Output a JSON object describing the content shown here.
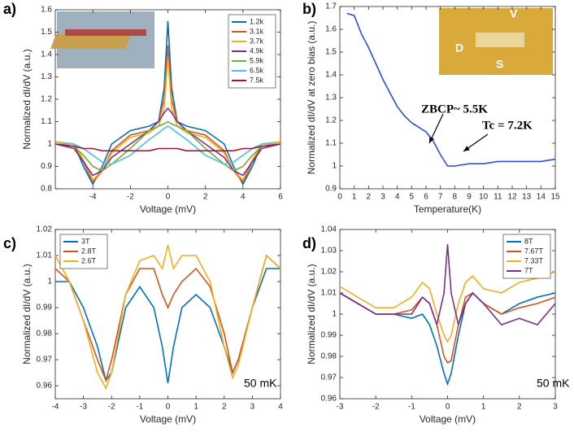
{
  "chart_data": [
    {
      "type": "line",
      "label": "a)",
      "x_label": "Voltage (mV)",
      "y_label": "Normalized dI/dV (a.u.)",
      "xlim": [
        -6,
        6
      ],
      "xticks": [
        -4,
        -2,
        0,
        2,
        4,
        6
      ],
      "ylim": [
        0.8,
        1.6
      ],
      "yticks": [
        0.8,
        0.9,
        1,
        1.1,
        1.2,
        1.3,
        1.4,
        1.5,
        1.6
      ],
      "legend": "upper right",
      "x": [
        -6,
        -5,
        -4.5,
        -4,
        -3.5,
        -3,
        -2,
        -1,
        -0.5,
        -0.2,
        0,
        0.2,
        0.5,
        1,
        2,
        3,
        3.5,
        4,
        4.5,
        5,
        6
      ],
      "series": [
        {
          "name": "1.2k",
          "color": "#0072bd",
          "values": [
            1.01,
            1.0,
            0.9,
            0.82,
            0.9,
            1.0,
            1.06,
            1.08,
            1.1,
            1.25,
            1.55,
            1.25,
            1.1,
            1.08,
            1.06,
            1.0,
            0.9,
            0.82,
            0.9,
            1.0,
            1.01
          ]
        },
        {
          "name": "3.1k",
          "color": "#d95319",
          "values": [
            1.01,
            1.0,
            0.92,
            0.83,
            0.88,
            0.97,
            1.04,
            1.06,
            1.1,
            1.2,
            1.44,
            1.2,
            1.1,
            1.06,
            1.04,
            0.97,
            0.88,
            0.83,
            0.92,
            1.0,
            1.01
          ]
        },
        {
          "name": "3.7k",
          "color": "#edb120",
          "values": [
            1.01,
            1.0,
            0.93,
            0.84,
            0.88,
            0.96,
            1.03,
            1.05,
            1.08,
            1.16,
            1.38,
            1.16,
            1.08,
            1.05,
            1.03,
            0.96,
            0.88,
            0.84,
            0.93,
            1.0,
            1.01
          ]
        },
        {
          "name": "4.9k",
          "color": "#7e2f8e",
          "values": [
            1.0,
            0.98,
            0.92,
            0.86,
            0.88,
            0.94,
            1.0,
            1.06,
            1.1,
            1.14,
            1.16,
            1.14,
            1.1,
            1.06,
            1.0,
            0.94,
            0.88,
            0.86,
            0.92,
            0.98,
            1.0
          ]
        },
        {
          "name": "5.9k",
          "color": "#77ac30",
          "values": [
            1.0,
            0.99,
            0.95,
            0.9,
            0.88,
            0.91,
            0.98,
            1.06,
            1.08,
            1.09,
            1.1,
            1.09,
            1.08,
            1.06,
            0.98,
            0.91,
            0.88,
            0.9,
            0.95,
            0.99,
            1.0
          ]
        },
        {
          "name": "6.5k",
          "color": "#4dbeee",
          "values": [
            1.0,
            1.0,
            0.98,
            0.95,
            0.92,
            0.91,
            0.95,
            1.02,
            1.05,
            1.07,
            1.08,
            1.07,
            1.05,
            1.02,
            0.95,
            0.91,
            0.92,
            0.95,
            0.98,
            1.0,
            1.0
          ]
        },
        {
          "name": "7.5k",
          "color": "#a2142f",
          "values": [
            1.0,
            0.99,
            0.98,
            0.98,
            0.97,
            0.97,
            0.97,
            0.97,
            0.98,
            0.98,
            0.98,
            0.98,
            0.98,
            0.97,
            0.97,
            0.97,
            0.97,
            0.98,
            0.98,
            0.99,
            1.0
          ]
        }
      ]
    },
    {
      "type": "line",
      "label": "b)",
      "x_label": "Temperature(K)",
      "y_label": "Normalized dI/dV at zero bias (a.u.)",
      "xlim": [
        0,
        15
      ],
      "xticks": [
        0,
        1,
        2,
        3,
        4,
        5,
        6,
        7,
        8,
        9,
        10,
        11,
        12,
        13,
        14,
        15
      ],
      "ylim": [
        0.9,
        1.7
      ],
      "yticks": [
        0.9,
        1,
        1.1,
        1.2,
        1.3,
        1.4,
        1.5,
        1.6,
        1.7
      ],
      "annotations": [
        "ZBCP~ 5.5K",
        "Tc = 7.2K"
      ],
      "x": [
        0.5,
        1,
        1.5,
        2,
        2.5,
        3,
        3.5,
        4,
        4.5,
        5,
        5.5,
        6,
        6.5,
        7,
        7.5,
        8,
        9,
        10,
        11,
        12,
        13,
        14,
        15
      ],
      "series": [
        {
          "color": "#2d4de0",
          "values": [
            1.67,
            1.66,
            1.58,
            1.52,
            1.45,
            1.38,
            1.32,
            1.26,
            1.22,
            1.19,
            1.17,
            1.15,
            1.11,
            1.05,
            1.0,
            1.0,
            1.01,
            1.01,
            1.02,
            1.02,
            1.02,
            1.02,
            1.03
          ]
        }
      ]
    },
    {
      "type": "line",
      "label": "c)",
      "x_label": "Voltage (mV)",
      "y_label": "Normalized dI/dV (a.u.)",
      "xlim": [
        -4,
        4
      ],
      "xticks": [
        -4,
        -3,
        -2,
        -1,
        0,
        1,
        2,
        3,
        4
      ],
      "ylim": [
        0.955,
        1.02
      ],
      "yticks": [
        0.96,
        0.97,
        0.98,
        0.99,
        1,
        1.01,
        1.02
      ],
      "legend": "upper left",
      "annotations": [
        "50 mK"
      ],
      "x": [
        -4,
        -3.5,
        -3,
        -2.5,
        -2.2,
        -2,
        -1.5,
        -1,
        -0.5,
        -0.2,
        0,
        0.2,
        0.5,
        1,
        1.5,
        2,
        2.3,
        2.5,
        3,
        3.5,
        4
      ],
      "series": [
        {
          "name": "3T",
          "color": "#0072bd",
          "values": [
            1.0,
            1.0,
            0.99,
            0.975,
            0.962,
            0.965,
            0.99,
            0.998,
            0.99,
            0.975,
            0.961,
            0.975,
            0.99,
            0.995,
            0.99,
            0.975,
            0.965,
            0.97,
            0.99,
            1.005,
            1.005
          ]
        },
        {
          "name": "2.8T",
          "color": "#d95319",
          "values": [
            1.005,
            1.0,
            0.985,
            0.97,
            0.962,
            0.97,
            0.995,
            1.005,
            1.005,
            0.995,
            0.99,
            0.995,
            1.0,
            1.005,
            0.998,
            0.98,
            0.965,
            0.97,
            0.99,
            1.01,
            1.005
          ]
        },
        {
          "name": "2.6T",
          "color": "#edb120",
          "values": [
            1.01,
            1.0,
            0.985,
            0.965,
            0.959,
            0.965,
            0.995,
            1.008,
            1.01,
            1.005,
            1.014,
            1.005,
            1.01,
            1.01,
            1.0,
            0.975,
            0.963,
            0.968,
            0.99,
            1.01,
            1.005
          ]
        }
      ]
    },
    {
      "type": "line",
      "label": "d)",
      "x_label": "Voltage (mV)",
      "y_label": "Normalized dI/dV (a.u.)",
      "xlim": [
        -3,
        3
      ],
      "xticks": [
        -3,
        -2,
        -1,
        0,
        1,
        2,
        3
      ],
      "ylim": [
        0.96,
        1.04
      ],
      "yticks": [
        0.96,
        0.97,
        0.98,
        0.99,
        1,
        1.01,
        1.02,
        1.03,
        1.04
      ],
      "legend": "upper right",
      "annotations": [
        "50 mK"
      ],
      "x": [
        -3,
        -2.5,
        -2,
        -1.5,
        -1,
        -0.7,
        -0.5,
        -0.3,
        -0.1,
        0,
        0.1,
        0.3,
        0.5,
        0.7,
        1,
        1.5,
        2,
        2.5,
        3
      ],
      "series": [
        {
          "name": "8T",
          "color": "#0072bd",
          "values": [
            1.01,
            1.005,
            1.0,
            1.0,
            0.998,
            1.0,
            0.995,
            0.985,
            0.972,
            0.967,
            0.972,
            0.99,
            1.005,
            1.01,
            1.005,
            1.0,
            1.005,
            1.008,
            1.01
          ]
        },
        {
          "name": "7.67T",
          "color": "#d95319",
          "values": [
            1.01,
            1.005,
            1.0,
            1.0,
            1.002,
            1.008,
            1.005,
            0.995,
            0.98,
            0.977,
            0.978,
            0.995,
            1.008,
            1.01,
            1.005,
            1.0,
            1.003,
            1.005,
            1.008
          ]
        },
        {
          "name": "7.33T",
          "color": "#edb120",
          "values": [
            1.013,
            1.008,
            1.003,
            1.003,
            1.008,
            1.015,
            1.012,
            1.0,
            0.99,
            0.987,
            0.99,
            1.005,
            1.015,
            1.018,
            1.012,
            1.01,
            1.015,
            1.017,
            1.02
          ]
        },
        {
          "name": "7T",
          "color": "#7e2f8e",
          "values": [
            1.01,
            1.005,
            1.0,
            1.0,
            1.0,
            1.008,
            1.005,
            0.995,
            1.01,
            1.033,
            1.01,
            0.995,
            1.005,
            1.01,
            1.005,
            0.995,
            0.998,
            0.995,
            1.005
          ]
        }
      ]
    }
  ]
}
